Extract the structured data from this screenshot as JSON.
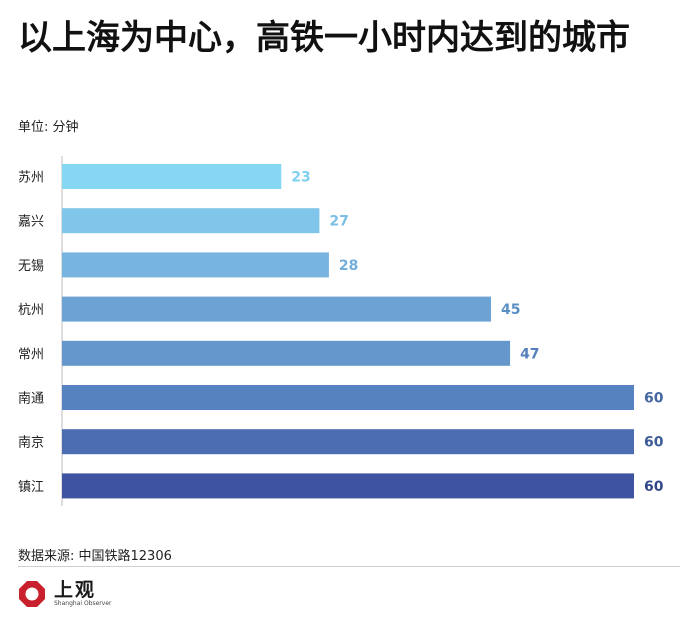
{
  "header": {
    "title": "以上海为中心，高铁一小时内达到的城市",
    "unit_label": "单位: 分钟"
  },
  "chart_data": {
    "type": "bar",
    "orientation": "horizontal",
    "categories": [
      "苏州",
      "嘉兴",
      "无锡",
      "杭州",
      "常州",
      "南通",
      "南京",
      "镇江"
    ],
    "values": [
      23,
      27,
      28,
      45,
      47,
      60,
      60,
      60
    ],
    "xlim": [
      0,
      60
    ],
    "grid": false,
    "legend": "none",
    "bar_colors": [
      "#86d8f2",
      "#7fc6ea",
      "#77b5e0",
      "#6ca3d4",
      "#6597cc",
      "#5782c0",
      "#4c6db2",
      "#3f54a0"
    ],
    "label_colors": [
      "#7fd0ee",
      "#7bbfe6",
      "#72afdc",
      "#5b8fc4",
      "#5380b8",
      "#45679f",
      "#3d5b96",
      "#32488a"
    ]
  },
  "footer": {
    "source": "数据来源: 中国铁路12306",
    "logo_cn": "上观",
    "logo_en": "Shanghai Observer",
    "logo_color": "#c8202c"
  }
}
